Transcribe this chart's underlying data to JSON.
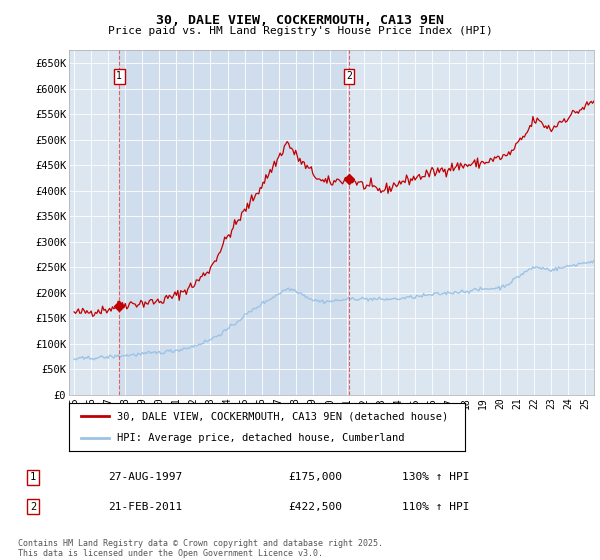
{
  "title": "30, DALE VIEW, COCKERMOUTH, CA13 9EN",
  "subtitle": "Price paid vs. HM Land Registry's House Price Index (HPI)",
  "ylabel_ticks": [
    "£0",
    "£50K",
    "£100K",
    "£150K",
    "£200K",
    "£250K",
    "£300K",
    "£350K",
    "£400K",
    "£450K",
    "£500K",
    "£550K",
    "£600K",
    "£650K"
  ],
  "ytick_values": [
    0,
    50000,
    100000,
    150000,
    200000,
    250000,
    300000,
    350000,
    400000,
    450000,
    500000,
    550000,
    600000,
    650000
  ],
  "ylim": [
    0,
    675000
  ],
  "xlim_start": 1994.7,
  "xlim_end": 2025.5,
  "xticks": [
    1995,
    1996,
    1997,
    1998,
    1999,
    2000,
    2001,
    2002,
    2003,
    2004,
    2005,
    2006,
    2007,
    2008,
    2009,
    2010,
    2011,
    2012,
    2013,
    2014,
    2015,
    2016,
    2017,
    2018,
    2019,
    2020,
    2021,
    2022,
    2023,
    2024,
    2025
  ],
  "xtick_labels": [
    "95",
    "96",
    "97",
    "98",
    "99",
    "00",
    "01",
    "02",
    "03",
    "04",
    "05",
    "06",
    "07",
    "08",
    "09",
    "10",
    "11",
    "12",
    "13",
    "14",
    "15",
    "16",
    "17",
    "18",
    "19",
    "20",
    "21",
    "22",
    "23",
    "24",
    "25"
  ],
  "red_line_label": "30, DALE VIEW, COCKERMOUTH, CA13 9EN (detached house)",
  "blue_line_label": "HPI: Average price, detached house, Cumberland",
  "sale1_x": 1997.65,
  "sale1_y": 175000,
  "sale1_label": "1",
  "sale1_date": "27-AUG-1997",
  "sale1_price": "£175,000",
  "sale1_hpi": "130% ↑ HPI",
  "sale2_x": 2011.12,
  "sale2_y": 422500,
  "sale2_label": "2",
  "sale2_date": "21-FEB-2011",
  "sale2_price": "£422,500",
  "sale2_hpi": "110% ↑ HPI",
  "footnote": "Contains HM Land Registry data © Crown copyright and database right 2025.\nThis data is licensed under the Open Government Licence v3.0.",
  "background_color": "#dce6f1",
  "highlight_color": "#c5d6e8",
  "fig_bg_color": "#ffffff",
  "red_color": "#c00000",
  "blue_color": "#9dc3e6",
  "vline_color": "#e06060",
  "marker_box_color": "#c00000",
  "grid_color": "#ffffff"
}
